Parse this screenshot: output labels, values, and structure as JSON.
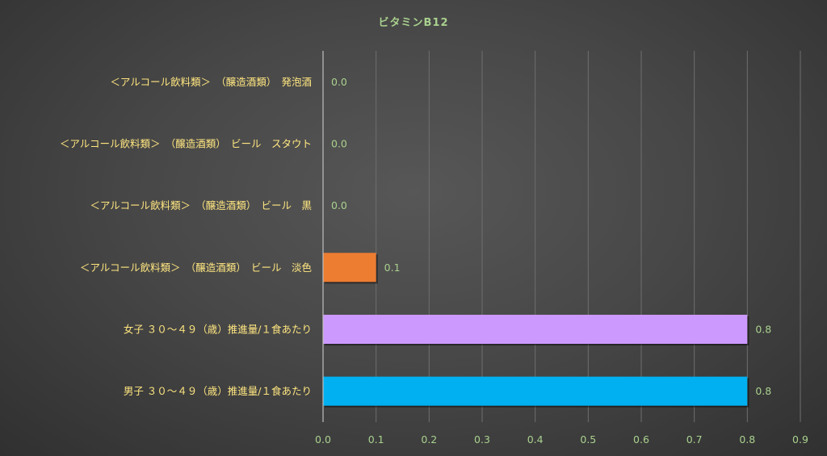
{
  "chart_data": {
    "type": "bar",
    "orientation": "horizontal",
    "title": "ビタミンB12",
    "categories": [
      "＜アルコール飲料類＞　（醸造酒類）　発泡酒",
      "＜アルコール飲料類＞　（醸造酒類）　ビール　スタウト",
      "＜アルコール飲料類＞　（醸造酒類）　ビール　黒",
      "＜アルコール飲料類＞　（醸造酒類）　ビール　淡色",
      "女子 ３０～４９（歳）推進量/１食あたり",
      "男子 ３０～４９（歳）推進量/１食あたり"
    ],
    "values": [
      0.0,
      0.0,
      0.0,
      0.1,
      0.8,
      0.8
    ],
    "data_labels": [
      "0.0",
      "0.0",
      "0.0",
      "0.1",
      "0.8",
      "0.8"
    ],
    "bar_colors": [
      "#ed7d31",
      "#ed7d31",
      "#ed7d31",
      "#ed7d31",
      "#cc99ff",
      "#00b0f0"
    ],
    "xlim": [
      0,
      0.9
    ],
    "x_ticks": [
      "0.0",
      "0.1",
      "0.2",
      "0.3",
      "0.4",
      "0.5",
      "0.6",
      "0.7",
      "0.8",
      "0.9"
    ],
    "xlabel": "",
    "ylabel": "",
    "grid": true,
    "legend": "none"
  }
}
